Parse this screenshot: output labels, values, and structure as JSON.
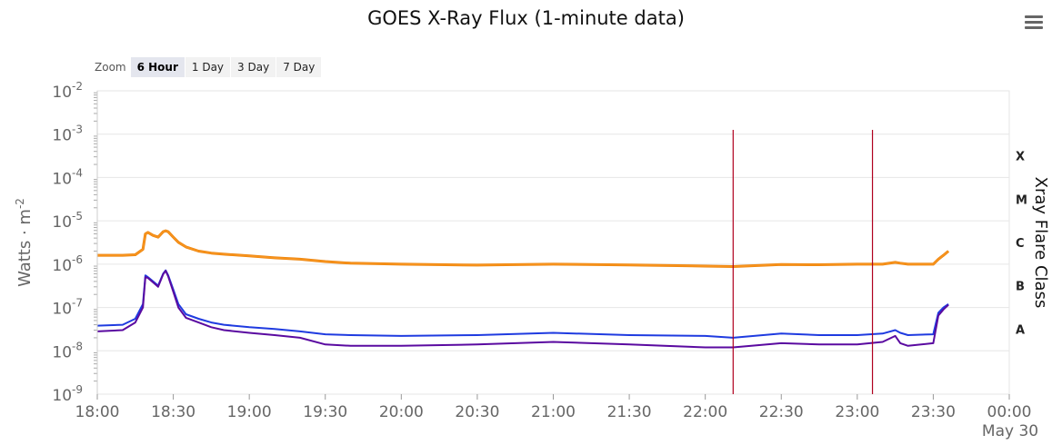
{
  "title": "GOES X-Ray Flux (1-minute data)",
  "menu_icon": "hamburger-menu-icon",
  "zoom": {
    "label": "Zoom",
    "buttons": [
      "6 Hour",
      "1 Day",
      "3 Day",
      "7 Day"
    ],
    "selected": "6 Hour"
  },
  "chart_data": {
    "type": "line",
    "title": "GOES X-Ray Flux (1-minute data)",
    "ylabel": "Watts · m",
    "ylabel_superscript": "-2",
    "y_scale": "log",
    "ylim": [
      1e-09,
      0.01
    ],
    "y_ticks": [
      {
        "base": "10",
        "exp": "-2",
        "value": 0.01
      },
      {
        "base": "10",
        "exp": "-3",
        "value": 0.001
      },
      {
        "base": "10",
        "exp": "-4",
        "value": 0.0001
      },
      {
        "base": "10",
        "exp": "-5",
        "value": 1e-05
      },
      {
        "base": "10",
        "exp": "-6",
        "value": 1e-06
      },
      {
        "base": "10",
        "exp": "-7",
        "value": 1e-07
      },
      {
        "base": "10",
        "exp": "-8",
        "value": 1e-08
      },
      {
        "base": "10",
        "exp": "-9",
        "value": 1e-09
      }
    ],
    "x_ticks": [
      "18:00",
      "18:30",
      "19:00",
      "19:30",
      "20:00",
      "20:30",
      "21:00",
      "21:30",
      "22:00",
      "22:30",
      "23:00",
      "23:30",
      "00:00"
    ],
    "x_date_label": "May 30",
    "xlim": [
      "18:00",
      "00:00"
    ],
    "right_axis_label": "Xray Flare Class",
    "flare_classes": [
      {
        "label": "X",
        "value": 0.0001
      },
      {
        "label": "M",
        "value": 1e-05
      },
      {
        "label": "C",
        "value": 1e-06
      },
      {
        "label": "B",
        "value": 1e-07
      },
      {
        "label": "A",
        "value": 1e-08
      }
    ],
    "markers": [
      "22:11",
      "23:06"
    ],
    "grid": true,
    "colors": {
      "long": "#f7931e",
      "long_edge": "#e87d00",
      "short_a": "#1f3be0",
      "short_b": "#5a0aa0",
      "marker": "#b0001e",
      "grid": "#e6e6e6"
    },
    "series": [
      {
        "key": "long",
        "x": [
          "18:00",
          "18:10",
          "18:15",
          "18:18",
          "18:19",
          "18:20",
          "18:22",
          "18:24",
          "18:26",
          "18:27",
          "18:28",
          "18:30",
          "18:32",
          "18:35",
          "18:40",
          "18:45",
          "18:50",
          "19:00",
          "19:10",
          "19:20",
          "19:30",
          "19:40",
          "20:00",
          "20:30",
          "21:00",
          "21:30",
          "22:00",
          "22:11",
          "22:30",
          "22:45",
          "23:00",
          "23:10",
          "23:15",
          "23:17",
          "23:20",
          "23:30",
          "23:32",
          "23:34",
          "23:36"
        ],
        "values": [
          1.6e-06,
          1.6e-06,
          1.65e-06,
          2.2e-06,
          5e-06,
          5.4e-06,
          4.6e-06,
          4.2e-06,
          5.6e-06,
          5.9e-06,
          5.6e-06,
          4.2e-06,
          3.2e-06,
          2.5e-06,
          2e-06,
          1.8e-06,
          1.7e-06,
          1.55e-06,
          1.4e-06,
          1.3e-06,
          1.15e-06,
          1.05e-06,
          1e-06,
          9.5e-07,
          1e-06,
          9.6e-07,
          9e-07,
          8.8e-07,
          9.8e-07,
          9.7e-07,
          1e-06,
          1e-06,
          1.1e-06,
          1.05e-06,
          1e-06,
          1e-06,
          1.3e-06,
          1.6e-06,
          2e-06
        ]
      },
      {
        "key": "short_a",
        "x": [
          "18:00",
          "18:10",
          "18:15",
          "18:18",
          "18:19",
          "18:20",
          "18:22",
          "18:24",
          "18:26",
          "18:27",
          "18:28",
          "18:30",
          "18:32",
          "18:35",
          "18:40",
          "18:45",
          "18:50",
          "19:00",
          "19:10",
          "19:20",
          "19:30",
          "19:40",
          "20:00",
          "20:30",
          "21:00",
          "21:30",
          "22:00",
          "22:11",
          "22:30",
          "22:45",
          "23:00",
          "23:10",
          "23:15",
          "23:17",
          "23:20",
          "23:30",
          "23:32",
          "23:34",
          "23:36"
        ],
        "values": [
          3.8e-08,
          4e-08,
          5.5e-08,
          1.2e-07,
          5.5e-07,
          5e-07,
          4e-07,
          3.2e-07,
          6e-07,
          7.2e-07,
          5.5e-07,
          2.6e-07,
          1.2e-07,
          7e-08,
          5.5e-08,
          4.5e-08,
          4e-08,
          3.5e-08,
          3.2e-08,
          2.8e-08,
          2.4e-08,
          2.3e-08,
          2.2e-08,
          2.3e-08,
          2.6e-08,
          2.3e-08,
          2.2e-08,
          2e-08,
          2.5e-08,
          2.3e-08,
          2.3e-08,
          2.5e-08,
          3e-08,
          2.6e-08,
          2.3e-08,
          2.4e-08,
          7.5e-08,
          1e-07,
          1.2e-07
        ]
      },
      {
        "key": "short_b",
        "x": [
          "18:00",
          "18:10",
          "18:15",
          "18:18",
          "18:19",
          "18:20",
          "18:22",
          "18:24",
          "18:26",
          "18:27",
          "18:28",
          "18:30",
          "18:32",
          "18:35",
          "18:40",
          "18:45",
          "18:50",
          "19:00",
          "19:10",
          "19:20",
          "19:30",
          "19:40",
          "20:00",
          "20:30",
          "21:00",
          "21:30",
          "22:00",
          "22:11",
          "22:30",
          "22:45",
          "23:00",
          "23:10",
          "23:15",
          "23:17",
          "23:20",
          "23:30",
          "23:32",
          "23:34",
          "23:36"
        ],
        "values": [
          2.8e-08,
          3e-08,
          4.5e-08,
          1e-07,
          5e-07,
          4.8e-07,
          3.8e-07,
          3e-07,
          5.8e-07,
          7e-07,
          5.2e-07,
          2.3e-07,
          1e-07,
          5.8e-08,
          4.5e-08,
          3.5e-08,
          3e-08,
          2.6e-08,
          2.3e-08,
          2e-08,
          1.4e-08,
          1.3e-08,
          1.3e-08,
          1.4e-08,
          1.6e-08,
          1.4e-08,
          1.2e-08,
          1.2e-08,
          1.5e-08,
          1.4e-08,
          1.4e-08,
          1.6e-08,
          2.2e-08,
          1.5e-08,
          1.3e-08,
          1.5e-08,
          6.5e-08,
          9e-08,
          1.15e-07
        ]
      }
    ]
  }
}
